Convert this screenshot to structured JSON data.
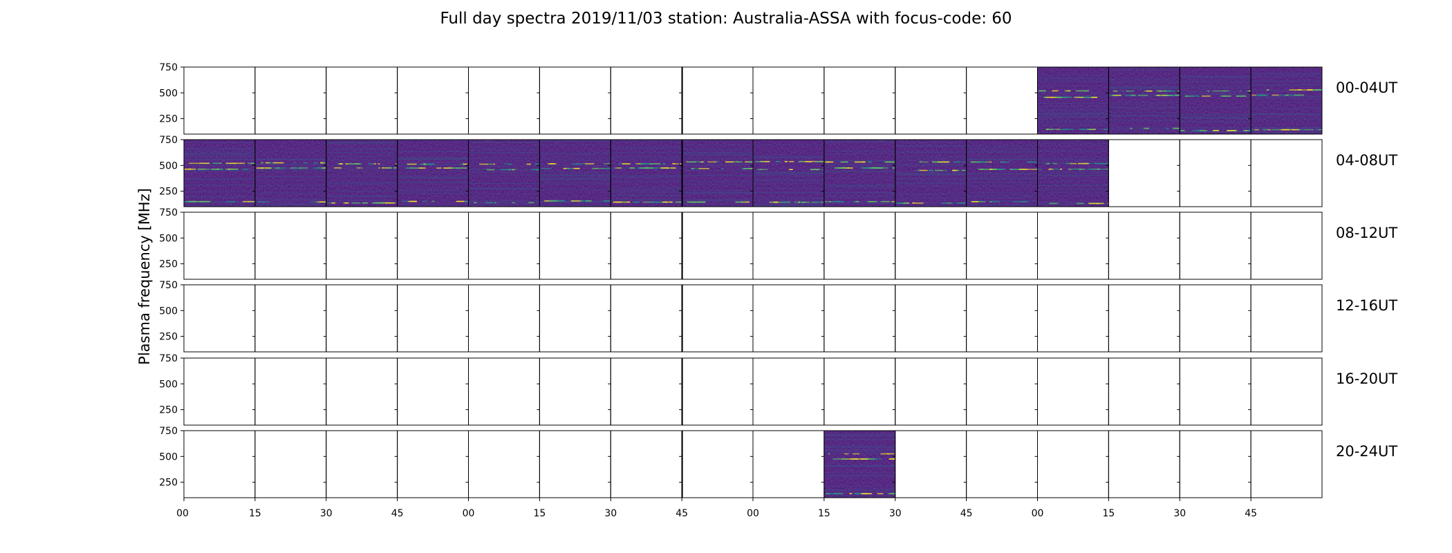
{
  "chart_data": {
    "type": "heatmap",
    "title": "Full day spectra 2019/11/03 station: Australia-ASSA with focus-code: 60",
    "ylabel": "Plasma frequency [MHz]",
    "ylim": [
      100,
      750
    ],
    "yticks": [
      "750",
      "500",
      "250"
    ],
    "ytick_values": [
      750,
      500,
      250
    ],
    "xtick_labels": [
      "00",
      "15",
      "30",
      "45",
      "00",
      "15",
      "30",
      "45",
      "00",
      "15",
      "30",
      "45",
      "00",
      "15",
      "30",
      "45"
    ],
    "panels_per_row": 16,
    "panel_minutes": 15,
    "colormap": [
      "#440154",
      "#3b528b",
      "#21918c",
      "#5ec962",
      "#fde725"
    ],
    "background_color": "#3f0d6b",
    "rows": [
      {
        "label": "00-04UT",
        "filled": [
          12,
          13,
          14,
          15
        ],
        "partial_start": 11
      },
      {
        "label": "04-08UT",
        "filled": [
          0,
          1,
          2,
          3,
          4,
          5,
          6,
          7,
          8,
          9,
          10,
          11,
          12
        ],
        "partial_end": 13
      },
      {
        "label": "08-12UT",
        "filled": []
      },
      {
        "label": "12-16UT",
        "filled": []
      },
      {
        "label": "16-20UT",
        "filled": []
      },
      {
        "label": "20-24UT",
        "filled": [
          9
        ],
        "partial_start": 9
      }
    ],
    "emission_bands_mhz": [
      530,
      470,
      150
    ]
  }
}
